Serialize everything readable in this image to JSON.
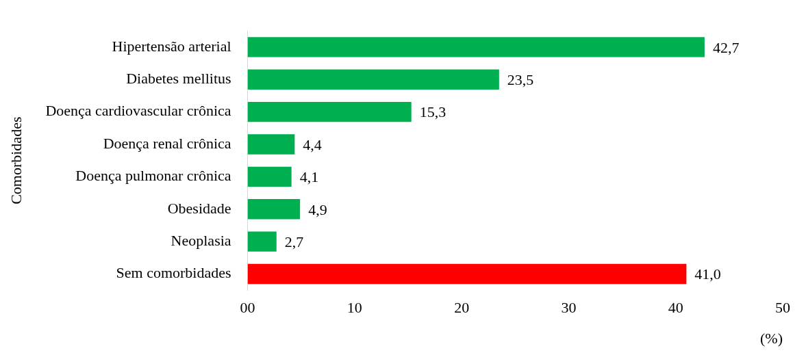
{
  "chart_data": {
    "type": "bar",
    "orientation": "horizontal",
    "ylabel": "Comorbidades",
    "xlabel": "(%)",
    "categories": [
      "Hipertensão arterial",
      "Diabetes mellitus",
      "Doença cardiovascular crônica",
      "Doença renal crônica",
      "Doença pulmonar crônica",
      "Obesidade",
      "Neoplasia",
      "Sem comorbidades"
    ],
    "values": [
      42.7,
      23.5,
      15.3,
      4.4,
      4.1,
      4.9,
      2.7,
      41.0
    ],
    "colors": [
      "#00b050",
      "#00b050",
      "#00b050",
      "#00b050",
      "#00b050",
      "#00b050",
      "#00b050",
      "#ff0000"
    ],
    "value_labels": [
      "42,7",
      "23,5",
      "15,3",
      "4,4",
      "4,1",
      "4,9",
      "2,7",
      "41,0"
    ],
    "xlim": [
      0,
      50
    ],
    "xticks": [
      {
        "value": 0,
        "label": "00"
      },
      10,
      20,
      30,
      40,
      50
    ]
  }
}
